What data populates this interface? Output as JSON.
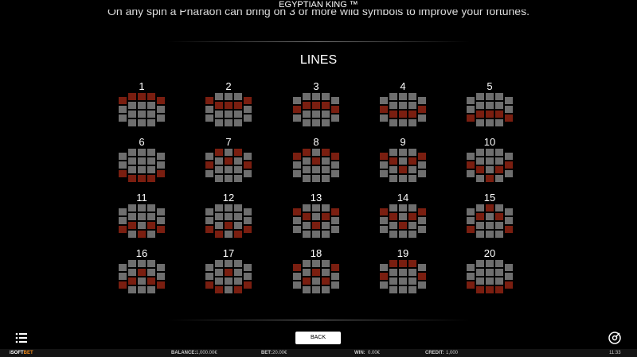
{
  "header": {
    "title": "EGYPTIAN KING ™",
    "text": "On any spin a Pharaoh can bring on 3 or more wild symbols to improve your fortunes."
  },
  "heading": "LINES",
  "lines": [
    "1",
    "2",
    "3",
    "4",
    "5",
    "6",
    "7",
    "8",
    "9",
    "10",
    "11",
    "12",
    "13",
    "14",
    "15",
    "16",
    "17",
    "18",
    "19",
    "20"
  ],
  "button": "BACK",
  "footer": {
    "brand_a": "iSOFT",
    "brand_b": "BET",
    "balance_label": "BALANCE:",
    "balance": "1,000.00€",
    "bet_label": "BET:",
    "bet": "20.00€",
    "win_label": "WIN:",
    "win": "0.00€",
    "credit_label": "CREDIT:",
    "credit": "1,000",
    "time": "11:33"
  }
}
